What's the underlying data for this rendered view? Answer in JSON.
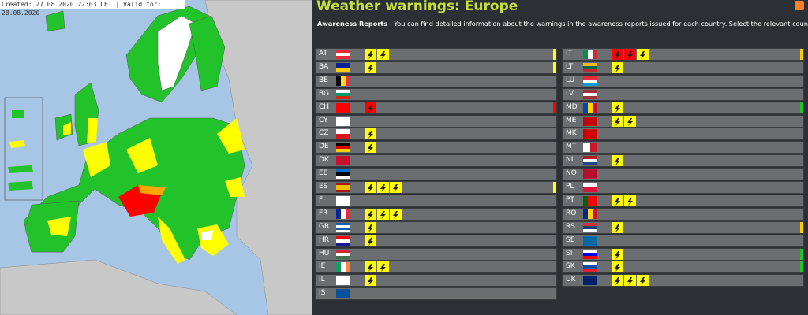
{
  "map": {
    "caption": "Created: 27.08.2020 22:03 CET | Valid for: 28.08.2020"
  },
  "header": {
    "title": "Weather warnings: Europe",
    "intro_bold": "Awareness Reports",
    "intro_text": " - You can find detailed information about the warnings in the awareness reports issued for each country. Select the relevant country."
  },
  "rows_left": [
    {
      "code": "AT",
      "warnings": [
        "#ffff00",
        "#ffff00"
      ],
      "level_color": "#ffff00"
    },
    {
      "code": "BA",
      "warnings": [
        "#ffff00"
      ],
      "level_color": "#ffff00"
    },
    {
      "code": "BE",
      "warnings": [],
      "level_color": null
    },
    {
      "code": "BG",
      "warnings": [],
      "level_color": null
    },
    {
      "code": "CH",
      "warnings": [
        "#ff0000"
      ],
      "level_color": "#ff0000"
    },
    {
      "code": "CY",
      "warnings": [],
      "level_color": null
    },
    {
      "code": "CZ",
      "warnings": [
        "#ffff00"
      ],
      "level_color": null
    },
    {
      "code": "DE",
      "warnings": [
        "#ffff00"
      ],
      "level_color": null
    },
    {
      "code": "DK",
      "warnings": [],
      "level_color": null
    },
    {
      "code": "EE",
      "warnings": [],
      "level_color": null
    },
    {
      "code": "ES",
      "warnings": [
        "#ffff00",
        "#ffff00",
        "#ffff00"
      ],
      "level_color": "#ffff00"
    },
    {
      "code": "FI",
      "warnings": [],
      "level_color": null
    },
    {
      "code": "FR",
      "warnings": [
        "#ffff00",
        "#ffff00",
        "#ffff00"
      ],
      "level_color": null
    },
    {
      "code": "GR",
      "warnings": [
        "#ffff00"
      ],
      "level_color": null
    },
    {
      "code": "HR",
      "warnings": [
        "#ffff00"
      ],
      "level_color": null
    },
    {
      "code": "HU",
      "warnings": [],
      "level_color": null
    },
    {
      "code": "IE",
      "warnings": [
        "#ffff00",
        "#ffff00"
      ],
      "level_color": null
    },
    {
      "code": "IL",
      "warnings": [
        "#ffff00"
      ],
      "level_color": null
    },
    {
      "code": "IS",
      "warnings": [],
      "level_color": null
    }
  ],
  "rows_right": [
    {
      "code": "IT",
      "warnings": [
        "#ff0000",
        "#ff0000",
        "#ffff00"
      ],
      "level_color": "#ffcc00"
    },
    {
      "code": "LT",
      "warnings": [
        "#ffff00"
      ],
      "level_color": null
    },
    {
      "code": "LU",
      "warnings": [],
      "level_color": null
    },
    {
      "code": "LV",
      "warnings": [],
      "level_color": null
    },
    {
      "code": "MD",
      "warnings": [
        "#ffff00"
      ],
      "level_color": "#22c32a"
    },
    {
      "code": "ME",
      "warnings": [
        "#ffff00",
        "#ffff00"
      ],
      "level_color": null
    },
    {
      "code": "MK",
      "warnings": [],
      "level_color": null
    },
    {
      "code": "MT",
      "warnings": [],
      "level_color": null
    },
    {
      "code": "NL",
      "warnings": [
        "#ffff00"
      ],
      "level_color": null
    },
    {
      "code": "NO",
      "warnings": [],
      "level_color": null
    },
    {
      "code": "PL",
      "warnings": [],
      "level_color": null
    },
    {
      "code": "PT",
      "warnings": [
        "#ffff00",
        "#ffff00"
      ],
      "level_color": null
    },
    {
      "code": "RO",
      "warnings": [],
      "level_color": null
    },
    {
      "code": "RS",
      "warnings": [
        "#ffff00"
      ],
      "level_color": "#ffcc00"
    },
    {
      "code": "SE",
      "warnings": [],
      "level_color": null
    },
    {
      "code": "SI",
      "warnings": [
        "#ffff00"
      ],
      "level_color": "#22c32a"
    },
    {
      "code": "SK",
      "warnings": [
        "#ffff00"
      ],
      "level_color": "#22c32a"
    },
    {
      "code": "UK",
      "warnings": [
        "#ffff00",
        "#ffff00",
        "#ffff00"
      ],
      "level_color": null
    }
  ]
}
